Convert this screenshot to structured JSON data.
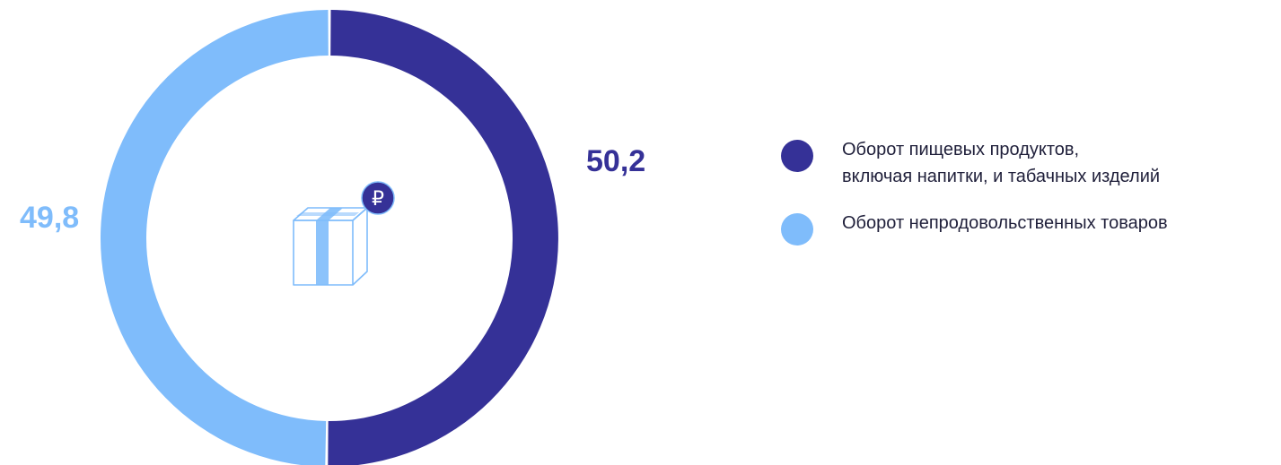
{
  "chart_data": {
    "type": "pie",
    "title": "",
    "series": [
      {
        "name_lines": [
          "Оборот пищевых продуктов,",
          "включая напитки, и табачных изделий"
        ],
        "value": 50.2,
        "label": "50,2",
        "color": "#353197"
      },
      {
        "name_lines": [
          "Оборот непродовольственных товаров"
        ],
        "value": 49.8,
        "label": "49,8",
        "color": "#7fbcfb"
      }
    ],
    "legend_position": "right",
    "center_icon": "gift-box-ruble-icon"
  }
}
